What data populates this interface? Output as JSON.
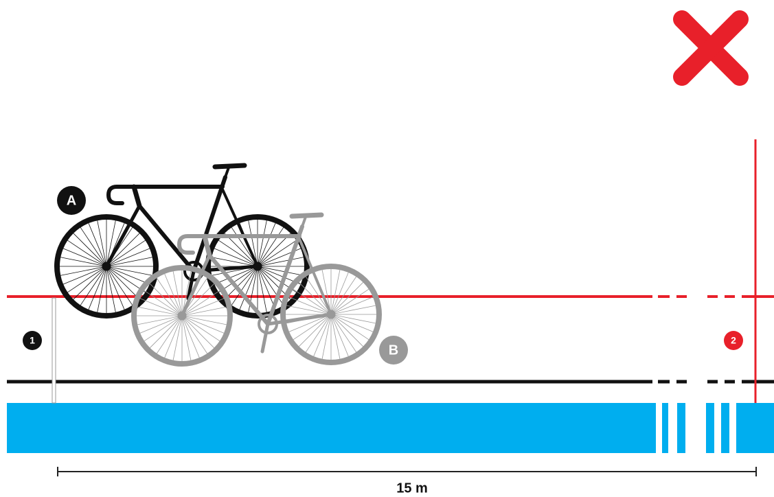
{
  "bikes": [
    {
      "label": "A"
    },
    {
      "label": "B"
    }
  ],
  "markers": [
    {
      "label": "1"
    },
    {
      "label": "2"
    }
  ],
  "dimension": {
    "label": "15 m"
  }
}
